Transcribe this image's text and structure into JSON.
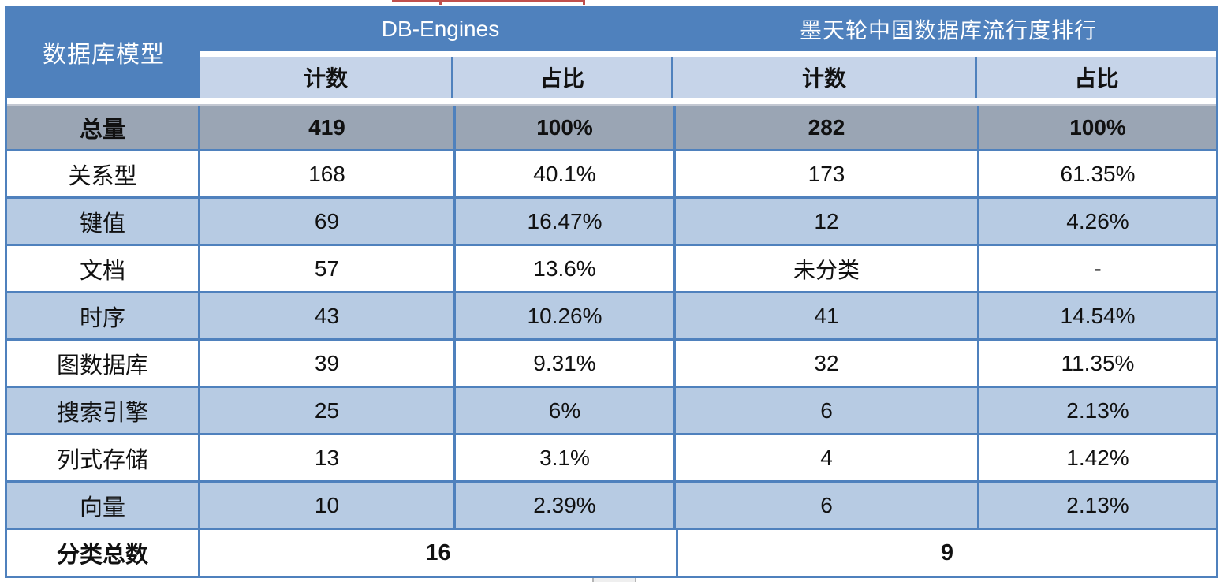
{
  "colors": {
    "header_blue": "#4f81bd",
    "subheader_blue": "#c6d4e9",
    "row_alt_blue": "#b7cbe3",
    "total_row_gray": "#9aa5b4",
    "border_blue": "#4f81bd",
    "red_artifact": "#c0504d"
  },
  "chart_data": {
    "type": "table",
    "title": "",
    "col1_header": "数据库模型",
    "column_groups": [
      {
        "label": "DB-Engines"
      },
      {
        "label": "墨天轮中国数据库流行度排行"
      }
    ],
    "subheaders": [
      "计数",
      "占比",
      "计数",
      "占比"
    ],
    "rows": [
      {
        "label": "总量",
        "values": [
          "419",
          "100%",
          "282",
          "100%"
        ],
        "style": "total"
      },
      {
        "label": "关系型",
        "values": [
          "168",
          "40.1%",
          "173",
          "61.35%"
        ]
      },
      {
        "label": "键值",
        "values": [
          "69",
          "16.47%",
          "12",
          "4.26%"
        ]
      },
      {
        "label": "文档",
        "values": [
          "57",
          "13.6%",
          "未分类",
          "-"
        ]
      },
      {
        "label": "时序",
        "values": [
          "43",
          "10.26%",
          "41",
          "14.54%"
        ]
      },
      {
        "label": "图数据库",
        "values": [
          "39",
          "9.31%",
          "32",
          "11.35%"
        ]
      },
      {
        "label": "搜索引擎",
        "values": [
          "25",
          "6%",
          "6",
          "2.13%"
        ]
      },
      {
        "label": "列式存储",
        "values": [
          "13",
          "3.1%",
          "4",
          "1.42%"
        ]
      },
      {
        "label": "向量",
        "values": [
          "10",
          "2.39%",
          "6",
          "2.13%"
        ]
      }
    ],
    "footer": {
      "label": "分类总数",
      "values": [
        "16",
        "9"
      ]
    }
  }
}
